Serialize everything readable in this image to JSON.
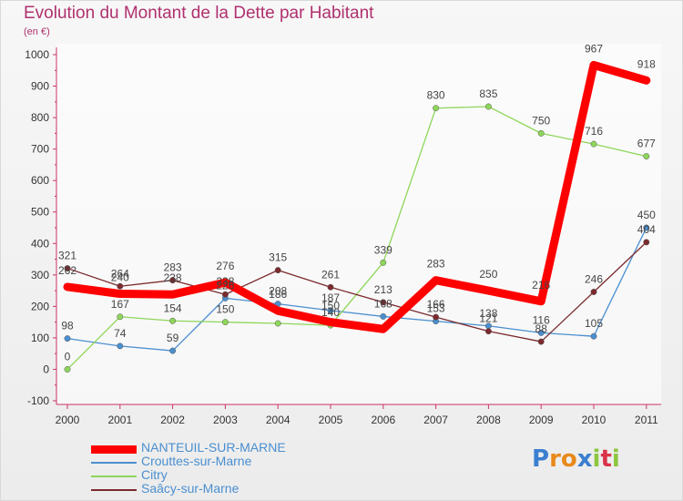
{
  "title": "Evolution du Montant de la Dette par Habitant",
  "subtitle": "(en €)",
  "logo_text": "Proxiti",
  "chart_data": {
    "type": "line",
    "title": "Evolution du Montant de la Dette par Habitant",
    "ylabel": "(en €)",
    "xlabel": "",
    "ylim": [
      -100,
      1000
    ],
    "yticks": [
      -100,
      0,
      100,
      200,
      300,
      400,
      500,
      600,
      700,
      800,
      900,
      1000
    ],
    "x": [
      "2000",
      "2001",
      "2002",
      "2003",
      "2004",
      "2005",
      "2006",
      "2007",
      "2008",
      "2009",
      "2010",
      "2011"
    ],
    "series": [
      {
        "name": "NANTEUIL-SUR-MARNE",
        "color": "#ff0000",
        "values": [
          262,
          240,
          238,
          276,
          186,
          150,
          128,
          283,
          250,
          216,
          967,
          918
        ],
        "labels": [
          "262",
          "240",
          "238",
          "276",
          "186",
          "150",
          "",
          "283",
          "250",
          "216",
          "967",
          "918"
        ]
      },
      {
        "name": "Crouttes-sur-Marne",
        "color": "#4a8fd0",
        "values": [
          98,
          74,
          59,
          226,
          208,
          187,
          168,
          153,
          138,
          116,
          105,
          450
        ],
        "labels": [
          "98",
          "74",
          "59",
          "226",
          "208",
          "187",
          "168",
          "153",
          "138",
          "116",
          "105",
          "450"
        ]
      },
      {
        "name": "Citry",
        "color": "#8ed65a",
        "values": [
          0,
          167,
          154,
          150,
          146,
          140,
          339,
          830,
          835,
          750,
          716,
          677
        ],
        "labels": [
          "0",
          "167",
          "154",
          "150",
          "",
          "140",
          "339",
          "830",
          "835",
          "750",
          "716",
          "677"
        ]
      },
      {
        "name": "Saâcy-sur-Marne",
        "color": "#7b2a2e",
        "values": [
          321,
          264,
          283,
          238,
          315,
          261,
          213,
          166,
          121,
          88,
          246,
          404
        ],
        "labels": [
          "321",
          "264",
          "283",
          "238",
          "315",
          "261",
          "213",
          "166",
          "121",
          "88",
          "246",
          "404"
        ]
      }
    ],
    "legend_position": "bottom-left"
  }
}
